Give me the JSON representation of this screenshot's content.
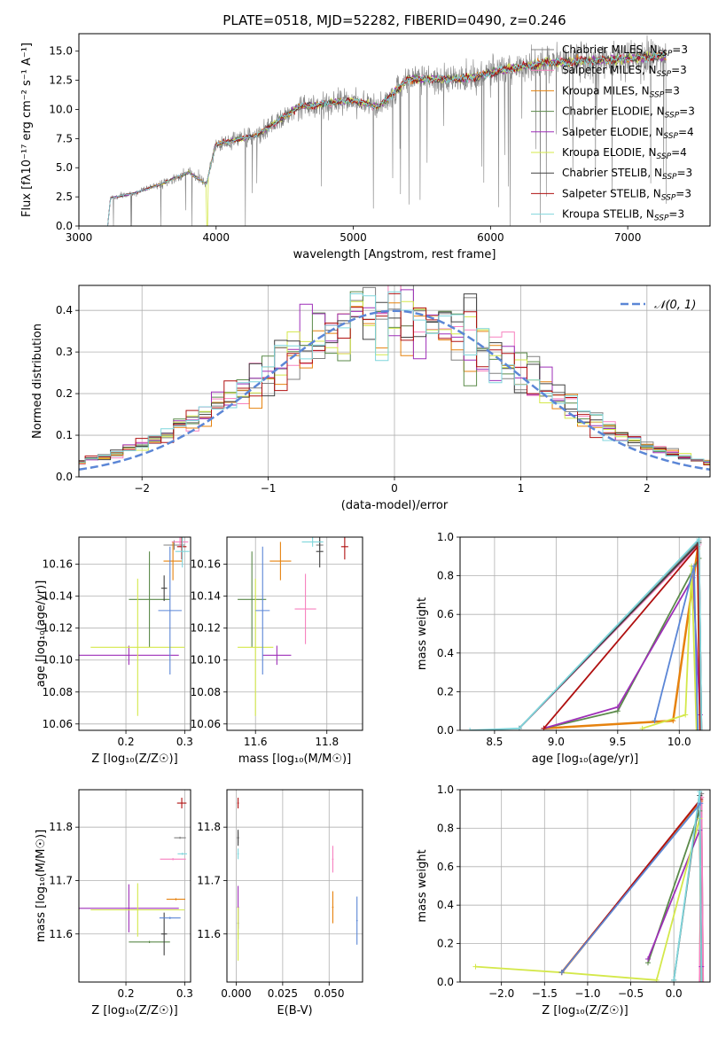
{
  "figure": {
    "title": "PLATE=0518, MJD=52282, FIBERID=0490, z=0.246"
  },
  "models": [
    {
      "name": "Chabrier MILES",
      "nssp": "3",
      "color": "#808080"
    },
    {
      "name": "Salpeter MILES",
      "nssp": "3",
      "color": "#f781bf"
    },
    {
      "name": "Kroupa MILES",
      "nssp": "3",
      "color": "#e6820e"
    },
    {
      "name": "Chabrier ELODIE",
      "nssp": "3",
      "color": "#5b8a4a"
    },
    {
      "name": "Salpeter ELODIE",
      "nssp": "4",
      "color": "#9e2fb8"
    },
    {
      "name": "Kroupa ELODIE",
      "nssp": "4",
      "color": "#d4e84a"
    },
    {
      "name": "Chabrier STELIB",
      "nssp": "3",
      "color": "#404040"
    },
    {
      "name": "Salpeter STELIB",
      "nssp": "3",
      "color": "#b01010"
    },
    {
      "name": "Kroupa STELIB",
      "nssp": "3",
      "color": "#7fd6dc"
    }
  ],
  "chart_data": [
    {
      "type": "line",
      "panel": "spectrum",
      "xlabel": "wavelength [Angstrom, rest frame]",
      "ylabel": "Flux [fλ10⁻¹⁷ erg cm⁻² s⁻¹ A⁻¹]",
      "xlim": [
        3000,
        7600
      ],
      "ylim": [
        0,
        16.5
      ],
      "xticks": [
        "3000",
        "4000",
        "5000",
        "6000",
        "7000"
      ],
      "yticks": [
        "0.0",
        "2.5",
        "5.0",
        "7.5",
        "10.0",
        "12.5",
        "15.0"
      ],
      "legend_position": "top-right",
      "data_range": [
        3210,
        7280
      ],
      "continuum": [
        {
          "x": 3210,
          "y": 0
        },
        {
          "x": 3230,
          "y": 2.4
        },
        {
          "x": 3400,
          "y": 2.8
        },
        {
          "x": 3600,
          "y": 3.6
        },
        {
          "x": 3800,
          "y": 4.6
        },
        {
          "x": 3930,
          "y": 3.6
        },
        {
          "x": 3960,
          "y": 5.2
        },
        {
          "x": 4000,
          "y": 7.0
        },
        {
          "x": 4300,
          "y": 7.8
        },
        {
          "x": 4600,
          "y": 10.2
        },
        {
          "x": 5000,
          "y": 10.8
        },
        {
          "x": 5180,
          "y": 10.2
        },
        {
          "x": 5400,
          "y": 12.6
        },
        {
          "x": 5800,
          "y": 12.6
        },
        {
          "x": 6100,
          "y": 13.4
        },
        {
          "x": 6400,
          "y": 14.0
        },
        {
          "x": 6800,
          "y": 14.2
        },
        {
          "x": 7280,
          "y": 14.6
        }
      ]
    },
    {
      "type": "line",
      "panel": "residual histogram",
      "xlabel": "(data-model)/error",
      "ylabel": "Normed distribution",
      "xlim": [
        -2.5,
        2.5
      ],
      "ylim": [
        0,
        0.46
      ],
      "xticks": [
        "−2",
        "−1",
        "0",
        "1",
        "2"
      ],
      "yticks": [
        "0.0",
        "0.1",
        "0.2",
        "0.3",
        "0.4"
      ],
      "bin_width": 0.1,
      "reference_label": "𝒩(0, 1)",
      "reference_color": "#5b86d6",
      "legend_position": "top-right"
    },
    {
      "type": "scatter",
      "panel": "age vs Z",
      "xlabel": "Z [log₁₀(Z/Z☉)]",
      "ylabel": "age  [log₁₀(age/yr)]",
      "xlim": [
        0.12,
        0.31
      ],
      "ylim": [
        10.056,
        10.177
      ],
      "xticks": [
        "0.2",
        "0.3"
      ],
      "yticks": [
        "10.06",
        "10.08",
        "10.10",
        "10.12",
        "10.14",
        "10.16"
      ],
      "points": [
        {
          "model": 0,
          "x": 0.282,
          "xe": 0.018,
          "y": 10.172,
          "ye": 0.003
        },
        {
          "model": 1,
          "x": 0.292,
          "xe": 0.014,
          "y": 10.174,
          "ye": 0.003
        },
        {
          "model": 2,
          "x": 0.28,
          "xe": 0.016,
          "y": 10.162,
          "ye": 0.012
        },
        {
          "model": 3,
          "x": 0.24,
          "xe": 0.035,
          "y": 10.138,
          "ye": 0.03
        },
        {
          "model": 4,
          "x": 0.205,
          "xe": 0.085,
          "y": 10.103,
          "ye": 0.006
        },
        {
          "model": 5,
          "x": 0.22,
          "xe": 0.08,
          "y": 10.108,
          "ye": 0.043
        },
        {
          "model": 6,
          "x": 0.265,
          "xe": 0.005,
          "y": 10.145,
          "ye": 0.008
        },
        {
          "model": 7,
          "x": 0.295,
          "xe": 0.008,
          "y": 10.171,
          "ye": 0.008
        },
        {
          "model": 8,
          "x": 0.296,
          "xe": 0.012,
          "y": 10.168,
          "ye": 0.01
        },
        {
          "model": 9,
          "x": 0.275,
          "xe": 0.02,
          "y": 10.131,
          "ye": 0.04
        }
      ]
    },
    {
      "type": "scatter",
      "panel": "age vs mass",
      "xlabel": "mass [log₁₀(M/M☉)]",
      "ylabel": "",
      "xlim": [
        11.52,
        11.9
      ],
      "ylim": [
        10.056,
        10.177
      ],
      "xticks": [
        "11.6",
        "11.8"
      ],
      "yticks": [
        "10.06",
        "10.08",
        "10.10",
        "10.12",
        "10.14",
        "10.16"
      ],
      "points": [
        {
          "model": 0,
          "x": 11.78,
          "xe": 0.01,
          "y": 10.172,
          "ye": 0.003
        },
        {
          "model": 1,
          "x": 11.74,
          "xe": 0.03,
          "y": 10.132,
          "ye": 0.022
        },
        {
          "model": 2,
          "x": 11.67,
          "xe": 0.03,
          "y": 10.162,
          "ye": 0.012
        },
        {
          "model": 3,
          "x": 11.59,
          "xe": 0.04,
          "y": 10.138,
          "ye": 0.03
        },
        {
          "model": 4,
          "x": 11.66,
          "xe": 0.04,
          "y": 10.103,
          "ye": 0.006
        },
        {
          "model": 5,
          "x": 11.6,
          "xe": 0.05,
          "y": 10.108,
          "ye": 0.043
        },
        {
          "model": 6,
          "x": 11.78,
          "xe": 0.01,
          "y": 10.168,
          "ye": 0.01
        },
        {
          "model": 7,
          "x": 11.85,
          "xe": 0.01,
          "y": 10.171,
          "ye": 0.008
        },
        {
          "model": 8,
          "x": 11.76,
          "xe": 0.03,
          "y": 10.174,
          "ye": 0.003
        },
        {
          "model": 9,
          "x": 11.62,
          "xe": 0.02,
          "y": 10.131,
          "ye": 0.04
        }
      ]
    },
    {
      "type": "line",
      "panel": "mass weight vs age",
      "xlabel": "age  [log₁₀(age/yr)]",
      "ylabel": "mass weight",
      "xlim": [
        8.22,
        10.25
      ],
      "ylim": [
        0,
        1
      ],
      "xticks": [
        "8.5",
        "9.0",
        "9.5",
        "10.0"
      ],
      "yticks": [
        "0.0",
        "0.2",
        "0.4",
        "0.6",
        "0.8",
        "1.0"
      ],
      "series": [
        {
          "model": 0,
          "x": [
            8.7,
            10.16,
            10.18
          ],
          "y": [
            0.01,
            0.98,
            0.0
          ]
        },
        {
          "model": 1,
          "x": [
            8.7,
            10.16,
            10.18
          ],
          "y": [
            0.01,
            0.96,
            0.0
          ]
        },
        {
          "model": 2,
          "x": [
            8.9,
            9.95,
            10.15,
            10.17
          ],
          "y": [
            0.01,
            0.05,
            0.94,
            0.0
          ]
        },
        {
          "model": 3,
          "x": [
            8.9,
            9.5,
            10.16,
            10.17
          ],
          "y": [
            0.01,
            0.1,
            0.89,
            0.0
          ]
        },
        {
          "model": 4,
          "x": [
            8.9,
            9.5,
            10.11,
            10.17
          ],
          "y": [
            0.01,
            0.12,
            0.79,
            0.08
          ]
        },
        {
          "model": 5,
          "x": [
            9.7,
            10.05,
            10.1,
            10.14
          ],
          "y": [
            0.01,
            0.08,
            0.85,
            0.0
          ]
        },
        {
          "model": 6,
          "x": [
            8.7,
            10.16,
            10.18
          ],
          "y": [
            0.01,
            0.97,
            0.0
          ]
        },
        {
          "model": 7,
          "x": [
            8.9,
            10.15,
            10.17
          ],
          "y": [
            0.01,
            0.95,
            0.0
          ]
        },
        {
          "model": 8,
          "x": [
            8.3,
            8.7,
            10.16,
            10.18
          ],
          "y": [
            0.0,
            0.01,
            0.99,
            0.0
          ]
        },
        {
          "model": 9,
          "x": [
            9.8,
            10.12,
            10.15
          ],
          "y": [
            0.05,
            0.85,
            0.0
          ]
        }
      ]
    },
    {
      "type": "scatter",
      "panel": "mass vs Z",
      "xlabel": "Z [log₁₀(Z/Z☉)]",
      "ylabel": "mass [log₁₀(M/M☉)]",
      "xlim": [
        0.12,
        0.31
      ],
      "ylim": [
        11.51,
        11.87
      ],
      "xticks": [
        "0.2",
        "0.3"
      ],
      "yticks": [
        "11.6",
        "11.7",
        "11.8"
      ],
      "points": [
        {
          "model": 0,
          "x": 0.292,
          "xe": 0.01,
          "y": 11.78,
          "ye": 0.002
        },
        {
          "model": 1,
          "x": 0.28,
          "xe": 0.022,
          "y": 11.74,
          "ye": 0.002
        },
        {
          "model": 2,
          "x": 0.285,
          "xe": 0.016,
          "y": 11.665,
          "ye": 0.002
        },
        {
          "model": 3,
          "x": 0.24,
          "xe": 0.035,
          "y": 11.585,
          "ye": 0.002
        },
        {
          "model": 4,
          "x": 0.205,
          "xe": 0.085,
          "y": 11.648,
          "ye": 0.045
        },
        {
          "model": 5,
          "x": 0.22,
          "xe": 0.08,
          "y": 11.645,
          "ye": 0.05
        },
        {
          "model": 6,
          "x": 0.265,
          "xe": 0.005,
          "y": 11.6,
          "ye": 0.04
        },
        {
          "model": 7,
          "x": 0.295,
          "xe": 0.008,
          "y": 11.845,
          "ye": 0.01
        },
        {
          "model": 8,
          "x": 0.296,
          "xe": 0.008,
          "y": 11.75,
          "ye": 0.002
        },
        {
          "model": 9,
          "x": 0.275,
          "xe": 0.018,
          "y": 11.63,
          "ye": 0.002
        }
      ]
    },
    {
      "type": "scatter",
      "panel": "mass vs E(B-V)",
      "xlabel": "E(B-V)",
      "ylabel": "",
      "xlim": [
        -0.005,
        0.068
      ],
      "ylim": [
        11.51,
        11.87
      ],
      "xticks": [
        "0.000",
        "0.025",
        "0.050"
      ],
      "yticks": [
        "11.6",
        "11.7",
        "11.8"
      ],
      "points": [
        {
          "model": 0,
          "x": 0.001,
          "xe": 0.0004,
          "y": 11.78,
          "ye": 0.01
        },
        {
          "model": 1,
          "x": 0.052,
          "xe": 0.0004,
          "y": 11.74,
          "ye": 0.025
        },
        {
          "model": 2,
          "x": 0.052,
          "xe": 0.0004,
          "y": 11.65,
          "ye": 0.03
        },
        {
          "model": 3,
          "x": 0.001,
          "xe": 0.0004,
          "y": 11.62,
          "ye": 0.03
        },
        {
          "model": 4,
          "x": 0.001,
          "xe": 0.0004,
          "y": 11.65,
          "ye": 0.04
        },
        {
          "model": 5,
          "x": 0.001,
          "xe": 0.0004,
          "y": 11.6,
          "ye": 0.05
        },
        {
          "model": 6,
          "x": 0.001,
          "xe": 0.0004,
          "y": 11.78,
          "ye": 0.015
        },
        {
          "model": 7,
          "x": 0.001,
          "xe": 0.0004,
          "y": 11.845,
          "ye": 0.01
        },
        {
          "model": 8,
          "x": 0.001,
          "xe": 0.0004,
          "y": 11.75,
          "ye": 0.01
        },
        {
          "model": 9,
          "x": 0.065,
          "xe": 0.0004,
          "y": 11.625,
          "ye": 0.045
        }
      ]
    },
    {
      "type": "line",
      "panel": "mass weight vs Z",
      "xlabel": "Z [log₁₀(Z/Z☉)]",
      "ylabel": "mass weight",
      "xlim": [
        -2.48,
        0.42
      ],
      "ylim": [
        0,
        1
      ],
      "xticks": [
        "−2.0",
        "−1.5",
        "−1.0",
        "−0.5",
        "0.0"
      ],
      "yticks": [
        "0.0",
        "0.2",
        "0.4",
        "0.6",
        "0.8",
        "1.0"
      ],
      "series": [
        {
          "model": 0,
          "x": [
            0.3,
            0.32,
            0.34
          ],
          "y": [
            0.0,
            0.98,
            0.0
          ]
        },
        {
          "model": 1,
          "x": [
            0.3,
            0.32,
            0.34
          ],
          "y": [
            0.0,
            0.96,
            0.0
          ]
        },
        {
          "model": 2,
          "x": [
            -1.3,
            0.31
          ],
          "y": [
            0.05,
            0.94
          ]
        },
        {
          "model": 3,
          "x": [
            -0.3,
            0.3,
            0.32
          ],
          "y": [
            0.1,
            0.89,
            0.0
          ]
        },
        {
          "model": 4,
          "x": [
            -0.3,
            0.3,
            0.32
          ],
          "y": [
            0.12,
            0.79,
            0.08
          ]
        },
        {
          "model": 5,
          "x": [
            -2.3,
            -1.3,
            -0.2,
            0.3,
            0.32
          ],
          "y": [
            0.08,
            0.05,
            0.01,
            0.85,
            0.0
          ]
        },
        {
          "model": 6,
          "x": [
            0.0,
            0.3,
            0.32
          ],
          "y": [
            0.01,
            0.97,
            0.0
          ]
        },
        {
          "model": 7,
          "x": [
            -1.3,
            0.31
          ],
          "y": [
            0.05,
            0.95
          ]
        },
        {
          "model": 8,
          "x": [
            0.0,
            0.3,
            0.32
          ],
          "y": [
            0.01,
            0.99,
            0.0
          ]
        },
        {
          "model": 9,
          "x": [
            -1.3,
            0.31
          ],
          "y": [
            0.05,
            0.93
          ]
        }
      ]
    }
  ]
}
